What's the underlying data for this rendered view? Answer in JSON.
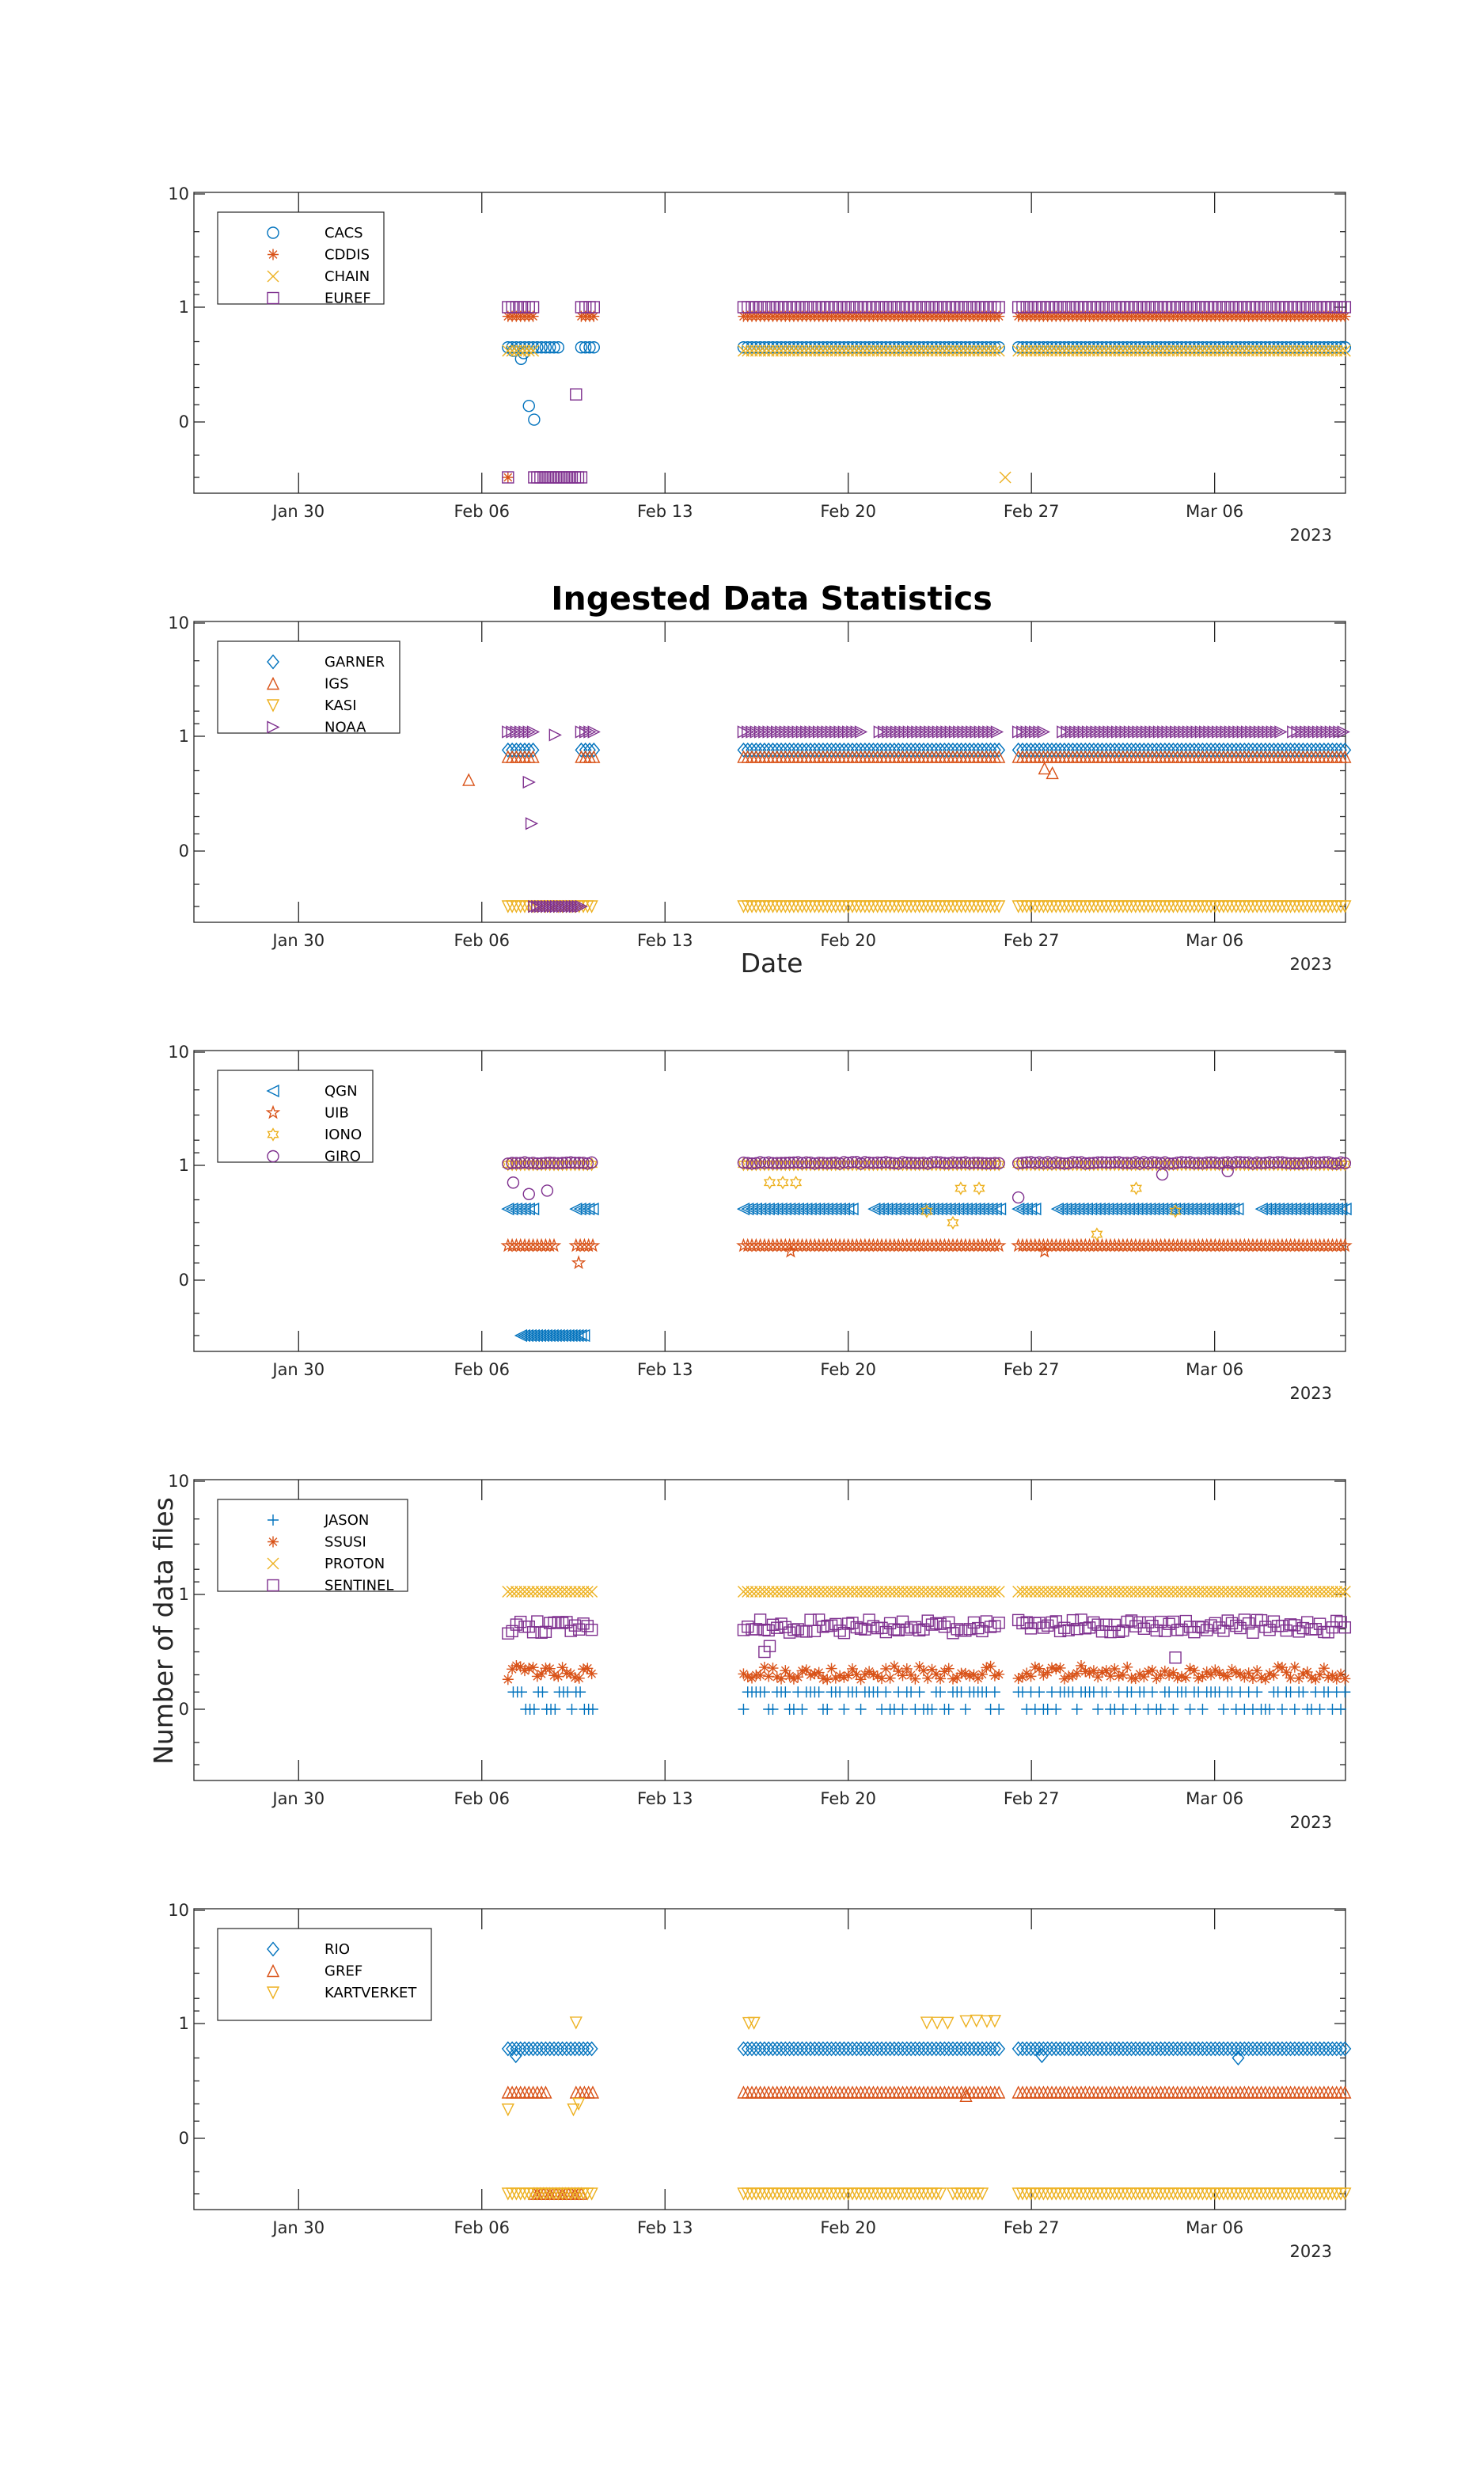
{
  "figure": {
    "title": "Ingested Data Statistics",
    "xlabel": "Date",
    "ylabel": "Number of data files"
  },
  "chart_data": [
    {
      "type": "scatter",
      "panel": 1,
      "xlabel": "",
      "ylabel": "",
      "x_range": [
        "2023-01-26",
        "2023-03-11"
      ],
      "x_ticks": [
        {
          "date": "2023-01-30",
          "label": "Jan 30"
        },
        {
          "date": "2023-02-06",
          "label": "Feb 06"
        },
        {
          "date": "2023-02-13",
          "label": "Feb 13"
        },
        {
          "date": "2023-02-20",
          "label": "Feb 20"
        },
        {
          "date": "2023-02-27",
          "label": "Feb 27"
        },
        {
          "date": "2023-03-06",
          "label": "Mar 06"
        }
      ],
      "x_year_label": "2023",
      "y_ticks": [
        {
          "value": 0,
          "label": "0"
        },
        {
          "value": 1,
          "label": "1"
        },
        {
          "value": 10,
          "label": "10"
        }
      ],
      "legend": "top-left",
      "series": [
        {
          "name": "CACS",
          "marker": "circle",
          "color": "#0072bd",
          "level": 0.65,
          "ranges": [
            [
              "2023-02-07",
              "2023-02-09"
            ],
            [
              "2023-02-09.8",
              "2023-02-10.3"
            ],
            [
              "2023-02-16.0",
              "2023-02-25.8"
            ],
            [
              "2023-02-26.5",
              "2023-03-11"
            ]
          ],
          "extra": [
            [
              7.2,
              0.62
            ],
            [
              7.5,
              0.55
            ],
            [
              7.8,
              0.14
            ],
            [
              8.0,
              0.02
            ],
            [
              7.6,
              0.6
            ]
          ]
        },
        {
          "name": "CDDIS",
          "marker": "asterisk",
          "color": "#d95319",
          "level": 0.92,
          "ranges": [
            [
              "2023-02-07",
              "2023-02-08"
            ],
            [
              "2023-02-09.8",
              "2023-02-10.3"
            ],
            [
              "2023-02-16.0",
              "2023-02-25.8"
            ],
            [
              "2023-02-26.5",
              "2023-03-11"
            ]
          ],
          "extra": [
            [
              7.0,
              -0.5
            ]
          ]
        },
        {
          "name": "CHAIN",
          "marker": "x",
          "color": "#edb120",
          "level": 0.62,
          "ranges": [
            [
              "2023-02-07",
              "2023-02-08"
            ],
            [
              "2023-02-16.0",
              "2023-02-25.8"
            ],
            [
              "2023-02-26.5",
              "2023-03-11"
            ]
          ],
          "extra": [
            [
              26.0,
              -0.5
            ]
          ]
        },
        {
          "name": "EUREF",
          "marker": "square",
          "color": "#7e2f8e",
          "level": 1.0,
          "ranges": [
            [
              "2023-02-07",
              "2023-02-08"
            ],
            [
              "2023-02-09.8",
              "2023-02-10.3"
            ],
            [
              "2023-02-16.0",
              "2023-02-25.8"
            ],
            [
              "2023-02-26.5",
              "2023-03-11"
            ]
          ],
          "extra": [
            [
              9.6,
              0.24
            ],
            [
              7.0,
              -0.5
            ]
          ],
          "low_range": [
            "2023-02-08",
            "2023-02-09.9"
          ]
        }
      ]
    },
    {
      "type": "scatter",
      "panel": 2,
      "xlabel": "Date",
      "ylabel": "",
      "x_range": [
        "2023-01-26",
        "2023-03-11"
      ],
      "x_ticks": [
        {
          "date": "2023-01-30",
          "label": "Jan 30"
        },
        {
          "date": "2023-02-06",
          "label": "Feb 06"
        },
        {
          "date": "2023-02-13",
          "label": "Feb 13"
        },
        {
          "date": "2023-02-20",
          "label": "Feb 20"
        },
        {
          "date": "2023-02-27",
          "label": "Feb 27"
        },
        {
          "date": "2023-03-06",
          "label": "Mar 06"
        }
      ],
      "x_year_label": "2023",
      "y_ticks": [
        {
          "value": 0,
          "label": "0"
        },
        {
          "value": 1,
          "label": "1"
        },
        {
          "value": 10,
          "label": "10"
        }
      ],
      "legend": "top-left",
      "series": [
        {
          "name": "GARNER",
          "marker": "diamond",
          "color": "#0072bd",
          "level": 0.88,
          "ranges": [
            [
              "2023-02-07",
              "2023-02-08"
            ],
            [
              "2023-02-09.8",
              "2023-02-10.3"
            ],
            [
              "2023-02-16.0",
              "2023-02-25.8"
            ],
            [
              "2023-02-26.5",
              "2023-03-11"
            ]
          ],
          "extra": []
        },
        {
          "name": "IGS",
          "marker": "triangle-up",
          "color": "#d95319",
          "level": 0.82,
          "ranges": [
            [
              "2023-02-07",
              "2023-02-08"
            ],
            [
              "2023-02-09.8",
              "2023-02-10.3"
            ],
            [
              "2023-02-16.0",
              "2023-02-25.8"
            ],
            [
              "2023-02-26.5",
              "2023-03-11"
            ]
          ],
          "extra": [
            [
              27.5,
              0.72
            ],
            [
              27.8,
              0.68
            ],
            [
              5.5,
              0.62
            ]
          ]
        },
        {
          "name": "KASI",
          "marker": "triangle-down",
          "color": "#edb120",
          "level": -0.5,
          "ranges": [
            [
              "2023-02-07",
              "2023-02-10.3"
            ],
            [
              "2023-02-16.0",
              "2023-02-25.8"
            ],
            [
              "2023-02-26.5",
              "2023-03-11"
            ]
          ],
          "extra": []
        },
        {
          "name": "NOAA",
          "marker": "triangle-right",
          "color": "#7e2f8e",
          "level": 1.35,
          "ranges": [
            [
              "2023-02-07",
              "2023-02-08"
            ],
            [
              "2023-02-09.8",
              "2023-02-10.3"
            ],
            [
              "2023-02-16.0",
              "2023-02-20.5"
            ],
            [
              "2023-02-21.2",
              "2023-02-25.8"
            ],
            [
              "2023-02-26.5",
              "2023-02-27.5"
            ],
            [
              "2023-02-28.2",
              "2023-03-08.6"
            ],
            [
              "2023-03-09.0",
              "2023-03-11"
            ]
          ],
          "extra": [
            [
              7.8,
              0.6
            ],
            [
              7.9,
              0.24
            ],
            [
              8.8,
              1.1
            ]
          ],
          "low_range": [
            "2023-02-08",
            "2023-02-09.9"
          ]
        }
      ]
    },
    {
      "type": "scatter",
      "panel": 3,
      "xlabel": "",
      "ylabel": "",
      "x_range": [
        "2023-01-26",
        "2023-03-11"
      ],
      "x_ticks": [
        {
          "date": "2023-01-30",
          "label": "Jan 30"
        },
        {
          "date": "2023-02-06",
          "label": "Feb 06"
        },
        {
          "date": "2023-02-13",
          "label": "Feb 13"
        },
        {
          "date": "2023-02-20",
          "label": "Feb 20"
        },
        {
          "date": "2023-02-27",
          "label": "Feb 27"
        },
        {
          "date": "2023-03-06",
          "label": "Mar 06"
        }
      ],
      "x_year_label": "2023",
      "y_ticks": [
        {
          "value": 0,
          "label": "0"
        },
        {
          "value": 1,
          "label": "1"
        },
        {
          "value": 10,
          "label": "10"
        }
      ],
      "legend": "top-left",
      "series": [
        {
          "name": "QGN",
          "marker": "triangle-left",
          "color": "#0072bd",
          "level": 0.62,
          "ranges": [
            [
              "2023-02-07",
              "2023-02-08"
            ],
            [
              "2023-02-09.6",
              "2023-02-10.3"
            ],
            [
              "2023-02-16.0",
              "2023-02-20.3"
            ],
            [
              "2023-02-21.0",
              "2023-02-25.8"
            ],
            [
              "2023-02-26.5",
              "2023-02-27.2"
            ],
            [
              "2023-02-28.0",
              "2023-03-07.0"
            ],
            [
              "2023-03-07.8",
              "2023-03-11"
            ]
          ],
          "extra": [],
          "low_range": [
            "2023-02-07.5",
            "2023-02-09.9"
          ]
        },
        {
          "name": "UIB",
          "marker": "pentagram",
          "color": "#d95319",
          "level": 0.3,
          "ranges": [
            [
              "2023-02-07",
              "2023-02-08.8"
            ],
            [
              "2023-02-09.6",
              "2023-02-10.3"
            ],
            [
              "2023-02-16.0",
              "2023-02-25.8"
            ],
            [
              "2023-02-26.5",
              "2023-03-11"
            ]
          ],
          "extra": [
            [
              9.7,
              0.15
            ],
            [
              17.8,
              0.25
            ],
            [
              27.5,
              0.25
            ]
          ]
        },
        {
          "name": "IONO",
          "marker": "hexagram",
          "color": "#edb120",
          "level": 1.08,
          "ranges": [
            [
              "2023-02-07",
              "2023-02-10.3"
            ],
            [
              "2023-02-16.0",
              "2023-02-25.8"
            ],
            [
              "2023-02-26.5",
              "2023-03-11"
            ]
          ],
          "extra": [
            [
              17.0,
              0.85
            ],
            [
              17.5,
              0.85
            ],
            [
              18.0,
              0.85
            ],
            [
              23.0,
              0.6
            ],
            [
              24.0,
              0.5
            ],
            [
              24.3,
              0.8
            ],
            [
              25.0,
              0.8
            ],
            [
              29.5,
              0.4
            ],
            [
              31.0,
              0.8
            ],
            [
              32.5,
              0.6
            ]
          ]
        },
        {
          "name": "GIRO",
          "marker": "circle",
          "color": "#7e2f8e",
          "level": 1.2,
          "ranges": [
            [
              "2023-02-07",
              "2023-02-10.3"
            ],
            [
              "2023-02-16.0",
              "2023-02-25.8"
            ],
            [
              "2023-02-26.5",
              "2023-03-11"
            ]
          ],
          "extra": [
            [
              7.2,
              0.85
            ],
            [
              7.8,
              0.75
            ],
            [
              8.5,
              0.78
            ],
            [
              26.5,
              0.72
            ],
            [
              32.0,
              0.92
            ],
            [
              34.5,
              0.95
            ]
          ]
        }
      ]
    },
    {
      "type": "scatter",
      "panel": 4,
      "xlabel": "",
      "ylabel": "Number of data files",
      "x_range": [
        "2023-01-26",
        "2023-03-11"
      ],
      "x_ticks": [
        {
          "date": "2023-01-30",
          "label": "Jan 30"
        },
        {
          "date": "2023-02-06",
          "label": "Feb 06"
        },
        {
          "date": "2023-02-13",
          "label": "Feb 13"
        },
        {
          "date": "2023-02-20",
          "label": "Feb 20"
        },
        {
          "date": "2023-02-27",
          "label": "Feb 27"
        },
        {
          "date": "2023-03-06",
          "label": "Mar 06"
        }
      ],
      "x_year_label": "2023",
      "y_ticks": [
        {
          "value": 0,
          "label": "0"
        },
        {
          "value": 1,
          "label": "1"
        },
        {
          "value": 10,
          "label": "10"
        }
      ],
      "legend": "top-left",
      "series": [
        {
          "name": "JASON",
          "marker": "plus",
          "color": "#0072bd",
          "level": 0.15,
          "ranges": [
            [
              "2023-02-07.2",
              "2023-02-10.3"
            ],
            [
              "2023-02-16.0",
              "2023-02-25.8"
            ],
            [
              "2023-02-26.5",
              "2023-03-11"
            ]
          ],
          "extra": [],
          "alt_level": 0.0
        },
        {
          "name": "SSUSI",
          "marker": "asterisk",
          "color": "#d95319",
          "level": 0.32,
          "ranges": [
            [
              "2023-02-07",
              "2023-02-10.3"
            ],
            [
              "2023-02-16.0",
              "2023-02-25.8"
            ],
            [
              "2023-02-26.5",
              "2023-03-11"
            ]
          ],
          "extra": []
        },
        {
          "name": "PROTON",
          "marker": "x",
          "color": "#edb120",
          "level": 1.22,
          "ranges": [
            [
              "2023-02-07",
              "2023-02-10.3"
            ],
            [
              "2023-02-16.0",
              "2023-02-25.8"
            ],
            [
              "2023-02-26.5",
              "2023-03-11"
            ]
          ],
          "extra": []
        },
        {
          "name": "SENTINEL",
          "marker": "square",
          "color": "#7e2f8e",
          "level": 0.72,
          "ranges": [
            [
              "2023-02-07",
              "2023-02-10.3"
            ],
            [
              "2023-02-16.0",
              "2023-02-25.8"
            ],
            [
              "2023-02-26.5",
              "2023-03-11"
            ]
          ],
          "extra": [
            [
              16.8,
              0.5
            ],
            [
              17.0,
              0.55
            ],
            [
              32.5,
              0.45
            ]
          ]
        }
      ]
    },
    {
      "type": "scatter",
      "panel": 5,
      "xlabel": "",
      "ylabel": "",
      "x_range": [
        "2023-01-26",
        "2023-03-11"
      ],
      "x_ticks": [
        {
          "date": "2023-01-30",
          "label": "Jan 30"
        },
        {
          "date": "2023-02-06",
          "label": "Feb 06"
        },
        {
          "date": "2023-02-13",
          "label": "Feb 13"
        },
        {
          "date": "2023-02-20",
          "label": "Feb 20"
        },
        {
          "date": "2023-02-27",
          "label": "Feb 27"
        },
        {
          "date": "2023-03-06",
          "label": "Mar 06"
        }
      ],
      "x_year_label": "2023",
      "y_ticks": [
        {
          "value": 0,
          "label": "0"
        },
        {
          "value": 1,
          "label": "1"
        },
        {
          "value": 10,
          "label": "10"
        }
      ],
      "legend": "top-left",
      "series": [
        {
          "name": "RIO",
          "marker": "diamond",
          "color": "#0072bd",
          "level": 0.78,
          "ranges": [
            [
              "2023-02-07",
              "2023-02-10.3"
            ],
            [
              "2023-02-16.0",
              "2023-02-25.8"
            ],
            [
              "2023-02-26.5",
              "2023-03-11"
            ]
          ],
          "extra": [
            [
              7.3,
              0.72
            ],
            [
              34.9,
              0.7
            ],
            [
              27.4,
              0.72
            ]
          ]
        },
        {
          "name": "GREF",
          "marker": "triangle-up",
          "color": "#d95319",
          "level": 0.4,
          "ranges": [
            [
              "2023-02-07",
              "2023-02-08.5"
            ],
            [
              "2023-02-09.6",
              "2023-02-10.3"
            ],
            [
              "2023-02-16.0",
              "2023-02-25.8"
            ],
            [
              "2023-02-26.5",
              "2023-03-11"
            ]
          ],
          "extra": [
            [
              24.5,
              0.37
            ]
          ],
          "low_range": [
            "2023-02-08",
            "2023-02-09.9"
          ]
        },
        {
          "name": "KARTVERKET",
          "marker": "triangle-down",
          "color": "#edb120",
          "level": -0.5,
          "ranges": [
            [
              "2023-02-07",
              "2023-02-10.3"
            ],
            [
              "2023-02-16.0",
              "2023-02-23.6"
            ],
            [
              "2023-02-24.0",
              "2023-02-25.2"
            ],
            [
              "2023-02-26.5",
              "2023-03-11"
            ]
          ],
          "extra": [
            [
              7.0,
              0.25
            ],
            [
              9.6,
              1.07
            ],
            [
              9.7,
              0.3
            ],
            [
              9.5,
              0.25
            ],
            [
              16.2,
              1.03
            ],
            [
              16.4,
              1.04
            ],
            [
              23.0,
              1.06
            ],
            [
              23.4,
              1.05
            ],
            [
              23.8,
              1.04
            ],
            [
              24.5,
              1.18
            ],
            [
              24.9,
              1.22
            ],
            [
              25.3,
              1.18
            ],
            [
              25.6,
              1.2
            ]
          ]
        }
      ]
    }
  ]
}
